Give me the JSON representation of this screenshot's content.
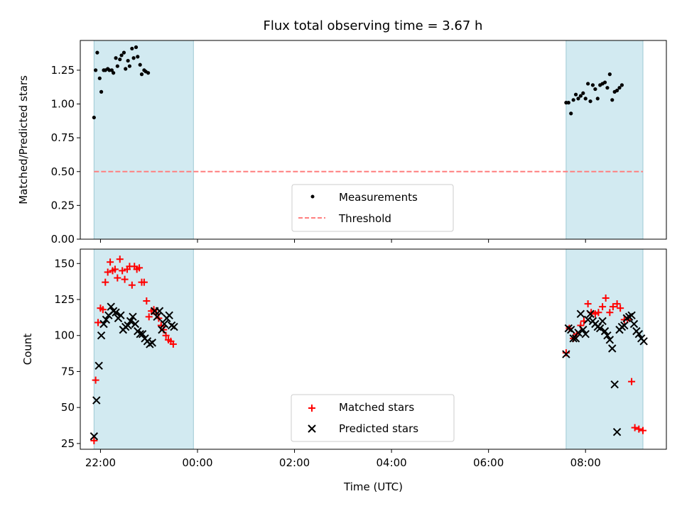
{
  "title": "Flux total observing time = 3.67 h",
  "colors": {
    "span": "#add8e6",
    "threshold": "#ff7f7f",
    "measurement": "#000000",
    "matched": "#ff0000",
    "predicted": "#000000"
  },
  "chart_data": [
    {
      "type": "scatter",
      "name": "ratio-panel",
      "ylabel": "Matched/Predicted stars",
      "xlabel": "",
      "xlim": [
        "21:35",
        "09:40"
      ],
      "ylim": [
        0,
        1.47
      ],
      "yticks": [
        0.0,
        0.25,
        0.5,
        0.75,
        1.0,
        1.25
      ],
      "ytick_labels": [
        "0.00",
        "0.25",
        "0.50",
        "0.75",
        "1.00",
        "1.25"
      ],
      "xticks": [
        "22:00",
        "00:00",
        "02:00",
        "04:00",
        "06:00",
        "08:00"
      ],
      "shaded_spans": [
        [
          "21:52",
          "23:55"
        ],
        [
          "07:36",
          "09:11"
        ]
      ],
      "threshold": {
        "name": "Threshold",
        "value": 0.5,
        "style": "dashed"
      },
      "legend": {
        "position": "lower center",
        "entries": [
          "Measurements",
          "Threshold"
        ]
      },
      "series": [
        {
          "name": "Measurements",
          "marker": "dot",
          "x": [
            "21:52",
            "21:54",
            "21:56",
            "21:59",
            "22:01",
            "22:04",
            "22:06",
            "22:09",
            "22:11",
            "22:14",
            "22:16",
            "22:19",
            "22:21",
            "22:24",
            "22:26",
            "22:29",
            "22:31",
            "22:34",
            "22:36",
            "22:39",
            "22:41",
            "22:44",
            "22:46",
            "22:49",
            "22:51",
            "22:54",
            "22:56",
            "22:59",
            "07:36",
            "07:39",
            "07:42",
            "07:45",
            "07:48",
            "07:51",
            "07:54",
            "07:57",
            "08:00",
            "08:03",
            "08:06",
            "08:09",
            "08:12",
            "08:15",
            "08:18",
            "08:21",
            "08:24",
            "08:27",
            "08:30",
            "08:33",
            "08:36",
            "08:39",
            "08:42",
            "08:45"
          ],
          "y": [
            0.9,
            1.25,
            1.38,
            1.19,
            1.09,
            1.25,
            1.25,
            1.26,
            1.25,
            1.25,
            1.23,
            1.34,
            1.28,
            1.33,
            1.36,
            1.38,
            1.26,
            1.32,
            1.28,
            1.41,
            1.34,
            1.42,
            1.35,
            1.29,
            1.22,
            1.25,
            1.24,
            1.23,
            1.01,
            1.01,
            0.93,
            1.03,
            1.07,
            1.04,
            1.06,
            1.08,
            1.04,
            1.15,
            1.02,
            1.14,
            1.11,
            1.04,
            1.14,
            1.15,
            1.16,
            1.12,
            1.22,
            1.03,
            1.09,
            1.1,
            1.12,
            1.14
          ]
        }
      ]
    },
    {
      "type": "scatter",
      "name": "count-panel",
      "ylabel": "Count",
      "xlabel": "Time (UTC)",
      "xlim": [
        "21:35",
        "09:40"
      ],
      "ylim": [
        21,
        160
      ],
      "yticks": [
        25,
        50,
        75,
        100,
        125,
        150
      ],
      "ytick_labels": [
        "25",
        "50",
        "75",
        "100",
        "125",
        "150"
      ],
      "xticks": [
        "22:00",
        "00:00",
        "02:00",
        "04:00",
        "06:00",
        "08:00"
      ],
      "xtick_labels": [
        "22:00",
        "00:00",
        "02:00",
        "04:00",
        "06:00",
        "08:00"
      ],
      "shaded_spans": [
        [
          "21:52",
          "23:55"
        ],
        [
          "07:36",
          "09:11"
        ]
      ],
      "legend": {
        "position": "lower center",
        "entries": [
          "Matched stars",
          "Predicted stars"
        ]
      },
      "series": [
        {
          "name": "Matched stars",
          "marker": "plus",
          "x": [
            "21:52",
            "21:54",
            "21:57",
            "22:00",
            "22:03",
            "22:06",
            "22:09",
            "22:12",
            "22:15",
            "22:18",
            "22:21",
            "22:24",
            "22:27",
            "22:30",
            "22:33",
            "22:36",
            "22:39",
            "22:42",
            "22:45",
            "22:48",
            "22:51",
            "22:54",
            "22:57",
            "23:00",
            "23:03",
            "23:06",
            "23:09",
            "23:12",
            "23:15",
            "23:18",
            "23:21",
            "23:24",
            "23:27",
            "23:30",
            "07:36",
            "07:40",
            "07:45",
            "07:49",
            "07:54",
            "07:58",
            "08:03",
            "08:07",
            "08:12",
            "08:16",
            "08:21",
            "08:25",
            "08:30",
            "08:34",
            "08:39",
            "08:43",
            "08:48",
            "08:52",
            "08:57",
            "09:01",
            "09:06",
            "09:11"
          ],
          "y": [
            27,
            69,
            109,
            119,
            118,
            137,
            144,
            151,
            145,
            146,
            140,
            153,
            145,
            139,
            146,
            148,
            135,
            148,
            146,
            147,
            137,
            137,
            124,
            113,
            117,
            118,
            115,
            112,
            107,
            104,
            100,
            97,
            96,
            94,
            88,
            105,
            98,
            101,
            107,
            110,
            122,
            116,
            115,
            116,
            120,
            126,
            116,
            120,
            122,
            119,
            111,
            111,
            68,
            36,
            35,
            34
          ]
        },
        {
          "name": "Predicted stars",
          "marker": "x",
          "x": [
            "21:52",
            "21:55",
            "21:58",
            "22:01",
            "22:04",
            "22:07",
            "22:10",
            "22:13",
            "22:16",
            "22:19",
            "22:22",
            "22:25",
            "22:28",
            "22:31",
            "22:34",
            "22:37",
            "22:40",
            "22:43",
            "22:46",
            "22:49",
            "22:52",
            "22:55",
            "22:58",
            "23:01",
            "23:04",
            "23:07",
            "23:10",
            "23:13",
            "23:16",
            "23:19",
            "23:22",
            "23:25",
            "23:28",
            "23:31",
            "07:36",
            "07:39",
            "07:42",
            "07:45",
            "07:48",
            "07:51",
            "07:54",
            "07:57",
            "08:00",
            "08:03",
            "08:06",
            "08:09",
            "08:12",
            "08:15",
            "08:18",
            "08:21",
            "08:24",
            "08:27",
            "08:30",
            "08:33",
            "08:36",
            "08:39",
            "08:42",
            "08:45",
            "08:48",
            "08:51",
            "08:54",
            "08:57",
            "09:00",
            "09:03",
            "09:06",
            "09:09",
            "09:12"
          ],
          "y": [
            30,
            55,
            79,
            100,
            108,
            111,
            114,
            120,
            117,
            116,
            112,
            114,
            104,
            106,
            107,
            110,
            113,
            108,
            103,
            101,
            101,
            98,
            96,
            94,
            95,
            117,
            113,
            117,
            104,
            108,
            112,
            114,
            107,
            106,
            87,
            105,
            104,
            98,
            98,
            102,
            115,
            104,
            101,
            111,
            115,
            110,
            108,
            106,
            105,
            110,
            103,
            100,
            97,
            91,
            66,
            33,
            104,
            106,
            107,
            112,
            113,
            114,
            108,
            103,
            101,
            98,
            96
          ]
        }
      ]
    }
  ]
}
